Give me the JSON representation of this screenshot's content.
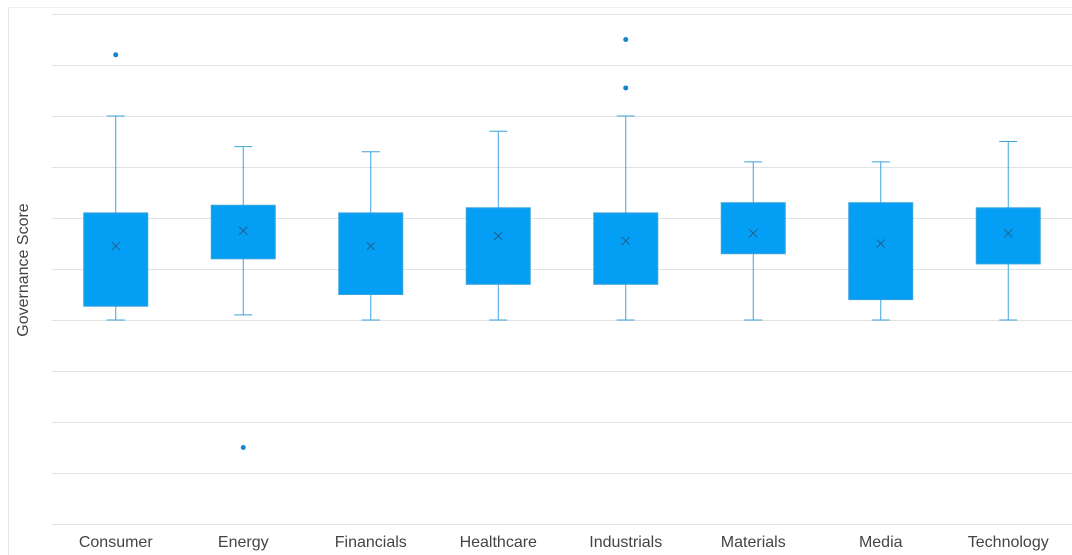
{
  "chart_data": {
    "type": "box",
    "y_label": "Governance Score",
    "categories": [
      "Consumer",
      "Energy",
      "Financials",
      "Healthcare",
      "Industrials",
      "Materials",
      "Media",
      "Technology"
    ],
    "whisker_high": [
      8.0,
      7.4,
      7.3,
      7.7,
      8.0,
      7.1,
      7.1,
      7.5
    ],
    "q3": [
      6.1,
      6.25,
      6.1,
      6.2,
      6.1,
      6.3,
      6.3,
      6.2
    ],
    "mean": [
      5.45,
      5.75,
      5.45,
      5.65,
      5.55,
      5.7,
      5.5,
      5.7
    ],
    "q1": [
      4.27,
      5.2,
      4.5,
      4.7,
      4.7,
      5.3,
      4.4,
      5.1
    ],
    "whisker_low": [
      4.0,
      4.1,
      4.0,
      4.0,
      4.0,
      4.0,
      4.0,
      4.0
    ],
    "outliers": [
      [
        9.2
      ],
      [
        1.5
      ],
      [],
      [],
      [
        9.5,
        8.55
      ],
      [],
      [],
      []
    ],
    "color": "#049ff5",
    "whisker_color": "#3ba3dc",
    "outlier_color": "#1785cc",
    "ylim": [
      0,
      10
    ],
    "yticks": [
      0,
      1,
      2,
      3,
      4,
      5,
      6,
      7,
      8,
      9,
      10
    ],
    "grid": true
  }
}
